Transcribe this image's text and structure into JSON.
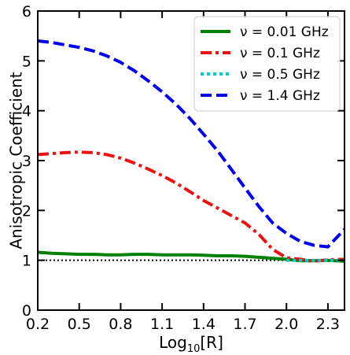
{
  "chart_data": {
    "type": "line",
    "title": "",
    "xlabel": "Log",
    "xlabel_sub": "10",
    "xlabel_tail": "[R]",
    "ylabel": "Anisotropic Coefficient",
    "xlim": [
      0.2,
      2.42
    ],
    "ylim": [
      0,
      6
    ],
    "x_ticks": [
      0.2,
      0.5,
      0.8,
      1.1,
      1.4,
      1.7,
      2.0,
      2.3
    ],
    "x_tick_labels": [
      "0.2",
      "0.5",
      "0.8",
      "1.1",
      "1.4",
      "1.7",
      "2.0",
      "2.3"
    ],
    "y_ticks": [
      0,
      1,
      2,
      3,
      4,
      5,
      6
    ],
    "y_tick_labels": [
      "0",
      "1",
      "2",
      "3",
      "4",
      "5",
      "6"
    ],
    "legend_position": "top-right",
    "reference_line": {
      "y": 1.0,
      "style": "dotted",
      "color": "#000000"
    },
    "series": [
      {
        "name": "ν = 0.01 GHz",
        "color": "#008000",
        "dash": "solid",
        "x": [
          0.2,
          0.3,
          0.4,
          0.5,
          0.6,
          0.7,
          0.8,
          0.9,
          1.0,
          1.1,
          1.2,
          1.3,
          1.4,
          1.5,
          1.6,
          1.7,
          1.8,
          1.9,
          2.0,
          2.1,
          2.2,
          2.3,
          2.42
        ],
        "y": [
          1.16,
          1.14,
          1.13,
          1.12,
          1.12,
          1.11,
          1.11,
          1.12,
          1.12,
          1.11,
          1.11,
          1.11,
          1.1,
          1.09,
          1.09,
          1.08,
          1.06,
          1.04,
          1.02,
          0.99,
          0.99,
          1.0,
          0.98
        ]
      },
      {
        "name": "ν = 0.1 GHz",
        "color": "#ee1111",
        "dash": "dashdot",
        "x": [
          0.2,
          0.3,
          0.4,
          0.5,
          0.6,
          0.7,
          0.8,
          0.9,
          1.0,
          1.1,
          1.2,
          1.3,
          1.4,
          1.5,
          1.6,
          1.7,
          1.8,
          1.9,
          2.0,
          2.1,
          2.2,
          2.3,
          2.42
        ],
        "y": [
          3.12,
          3.14,
          3.16,
          3.17,
          3.16,
          3.12,
          3.05,
          2.95,
          2.83,
          2.7,
          2.55,
          2.38,
          2.2,
          2.05,
          1.9,
          1.75,
          1.52,
          1.22,
          1.05,
          1.02,
          0.98,
          1.01,
          1.02
        ]
      },
      {
        "name": "ν = 0.5 GHz",
        "color": "#00cccc",
        "dash": "dotted",
        "x": [
          2.0,
          2.1,
          2.2,
          2.3,
          2.42
        ],
        "y": [
          1.0,
          1.0,
          1.0,
          1.0,
          1.0
        ]
      },
      {
        "name": "ν = 1.4 GHz",
        "color": "#0000ee",
        "dash": "dashed",
        "x": [
          0.2,
          0.3,
          0.4,
          0.5,
          0.6,
          0.7,
          0.8,
          0.9,
          1.0,
          1.1,
          1.2,
          1.3,
          1.4,
          1.5,
          1.6,
          1.7,
          1.8,
          1.9,
          2.0,
          2.1,
          2.2,
          2.3,
          2.42
        ],
        "y": [
          5.4,
          5.37,
          5.32,
          5.27,
          5.2,
          5.1,
          4.97,
          4.8,
          4.6,
          4.38,
          4.13,
          3.85,
          3.53,
          3.2,
          2.83,
          2.45,
          2.08,
          1.75,
          1.54,
          1.38,
          1.3,
          1.27,
          1.62
        ]
      }
    ]
  }
}
